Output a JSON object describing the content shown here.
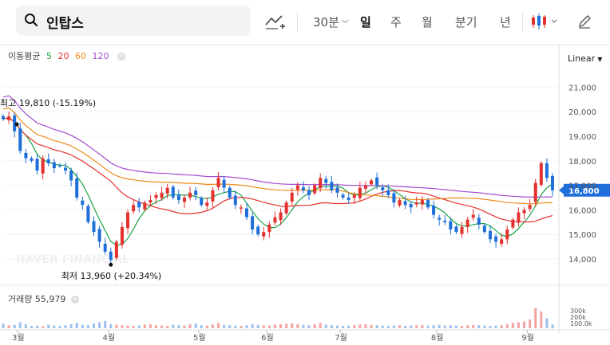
{
  "search": {
    "query": "인탑스"
  },
  "toolbar": {
    "intervals": [
      {
        "label": "30분",
        "selected": false
      },
      {
        "label": "일",
        "selected": true
      },
      {
        "label": "주",
        "selected": false
      },
      {
        "label": "월",
        "selected": false
      },
      {
        "label": "분기",
        "selected": false
      },
      {
        "label": "년",
        "selected": false
      }
    ]
  },
  "indicators": {
    "ma_title": "이동평균",
    "ma_periods": [
      {
        "label": "5",
        "color": "#19a348"
      },
      {
        "label": "20",
        "color": "#e3312d"
      },
      {
        "label": "60",
        "color": "#f08a1c"
      },
      {
        "label": "120",
        "color": "#a34bd0"
      }
    ],
    "scale": "Linear"
  },
  "volume": {
    "label": "거래량",
    "value": "55,979",
    "axis_labels": [
      "300k",
      "200k",
      "100.0k"
    ]
  },
  "watermark": "NAVER FINANCIAL",
  "chart_data": {
    "type": "candlestick",
    "y_axis_ticks": [
      14000,
      15000,
      16000,
      17000,
      18000,
      19000,
      20000,
      21000
    ],
    "y_axis_labels": [
      "14,000",
      "15,000",
      "16,000",
      "17,000",
      "18,000",
      "19,000",
      "20,000",
      "21,000"
    ],
    "x_axis_labels": [
      "3월",
      "4월",
      "5월",
      "6월",
      "7월",
      "8월",
      "9월"
    ],
    "current_price": 16800,
    "current_price_label": "16,800",
    "high_annotation": {
      "label": "최고",
      "value": "19,810",
      "change": "(-15.19%)"
    },
    "low_annotation": {
      "label": "최저",
      "value": "13,960",
      "change": "(+20.34%)"
    },
    "colors": {
      "up": "#e3312d",
      "down": "#1e6fd9",
      "current_tag": "#1e6fd9"
    },
    "price_path": [
      19700,
      19810,
      19200,
      18400,
      18100,
      18000,
      17600,
      18100,
      17900,
      17700,
      17800,
      17600,
      17200,
      16500,
      16200,
      15500,
      15100,
      14700,
      14300,
      13960,
      14700,
      15300,
      15900,
      16200,
      16100,
      16300,
      16400,
      16600,
      16700,
      16900,
      16500,
      16400,
      16500,
      16700,
      16600,
      16200,
      16300,
      16800,
      17300,
      16900,
      16500,
      16200,
      16100,
      15700,
      15200,
      15000,
      15100,
      15400,
      15700,
      15900,
      16300,
      16700,
      17000,
      16800,
      16600,
      17000,
      17300,
      17100,
      16800,
      16700,
      16500,
      16400,
      16600,
      16900,
      17000,
      17200,
      17000,
      16800,
      16600,
      16300,
      16400,
      16200,
      16100,
      16300,
      16400,
      16100,
      15800,
      15600,
      15500,
      15200,
      15100,
      15300,
      15600,
      15800,
      15400,
      15100,
      14800,
      14700,
      14800,
      15200,
      15600,
      15900,
      16000,
      16200,
      17100,
      17900,
      17300,
      16800
    ],
    "volume_values": [
      70,
      45,
      50,
      90,
      60,
      35,
      40,
      30,
      55,
      40,
      35,
      45,
      60,
      80,
      50,
      45,
      70,
      90,
      110,
      60,
      50,
      45,
      40,
      35,
      40,
      55,
      60,
      45,
      40,
      35,
      50,
      45,
      40,
      60,
      70,
      45,
      40,
      55,
      80,
      50,
      45,
      40,
      35,
      45,
      60,
      50,
      45,
      40,
      55,
      60,
      70,
      75,
      60,
      50,
      45,
      60,
      80,
      55,
      45,
      40,
      35,
      40,
      45,
      55,
      60,
      50,
      45,
      40,
      35,
      40,
      45,
      35,
      40,
      45,
      50,
      40,
      45,
      50,
      40,
      45,
      40,
      35,
      45,
      50,
      45,
      40,
      35,
      40,
      45,
      60,
      80,
      90,
      100,
      130,
      300,
      250,
      150,
      55.979
    ]
  }
}
